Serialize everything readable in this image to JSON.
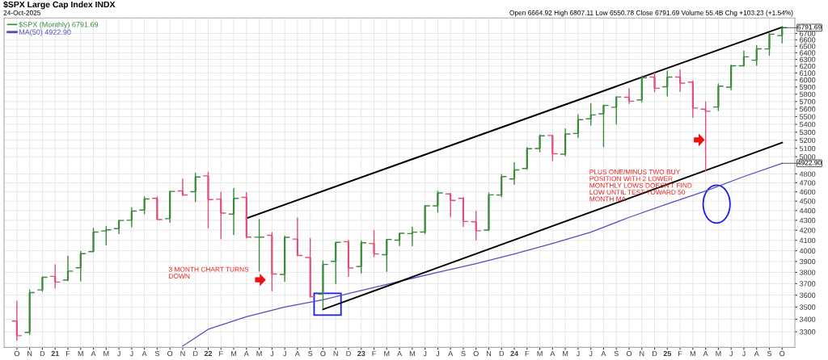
{
  "chart_data": {
    "type": "candlestick",
    "title": "$SPX Large Cap Index INDX",
    "subtitle": "24-Oct-2025",
    "x": [
      "2020-10",
      "2020-11",
      "2020-12",
      "2021-01",
      "2021-02",
      "2021-03",
      "2021-04",
      "2021-05",
      "2021-06",
      "2021-07",
      "2021-08",
      "2021-09",
      "2021-10",
      "2021-11",
      "2021-12",
      "2022-01",
      "2022-02",
      "2022-03",
      "2022-04",
      "2022-05",
      "2022-06",
      "2022-07",
      "2022-08",
      "2022-09",
      "2022-10",
      "2022-11",
      "2022-12",
      "2023-01",
      "2023-02",
      "2023-03",
      "2023-04",
      "2023-05",
      "2023-06",
      "2023-07",
      "2023-08",
      "2023-09",
      "2023-10",
      "2023-11",
      "2023-12",
      "2024-01",
      "2024-02",
      "2024-03",
      "2024-04",
      "2024-05",
      "2024-06",
      "2024-07",
      "2024-08",
      "2024-09",
      "2024-10",
      "2024-11",
      "2024-12",
      "2025-01",
      "2025-02",
      "2025-03",
      "2025-04",
      "2025-05",
      "2025-06",
      "2025-07",
      "2025-08",
      "2025-09",
      "2025-10"
    ],
    "xticks": [
      {
        "value": "2020-10",
        "label": "O"
      },
      {
        "value": "2020-11",
        "label": "N"
      },
      {
        "value": "2020-12",
        "label": "D"
      },
      {
        "value": "2021-01",
        "label": "21"
      },
      {
        "value": "2021-02",
        "label": "F"
      },
      {
        "value": "2021-03",
        "label": "M"
      },
      {
        "value": "2021-04",
        "label": "A"
      },
      {
        "value": "2021-05",
        "label": "M"
      },
      {
        "value": "2021-06",
        "label": "J"
      },
      {
        "value": "2021-07",
        "label": "J"
      },
      {
        "value": "2021-08",
        "label": "A"
      },
      {
        "value": "2021-09",
        "label": "S"
      },
      {
        "value": "2021-10",
        "label": "O"
      },
      {
        "value": "2021-11",
        "label": "N"
      },
      {
        "value": "2021-12",
        "label": "D"
      },
      {
        "value": "2022-01",
        "label": "22"
      },
      {
        "value": "2022-02",
        "label": "F"
      },
      {
        "value": "2022-03",
        "label": "M"
      },
      {
        "value": "2022-04",
        "label": "A"
      },
      {
        "value": "2022-05",
        "label": "M"
      },
      {
        "value": "2022-06",
        "label": "J"
      },
      {
        "value": "2022-07",
        "label": "J"
      },
      {
        "value": "2022-08",
        "label": "A"
      },
      {
        "value": "2022-09",
        "label": "S"
      },
      {
        "value": "2022-10",
        "label": "O"
      },
      {
        "value": "2022-11",
        "label": "N"
      },
      {
        "value": "2022-12",
        "label": "D"
      },
      {
        "value": "2023-01",
        "label": "23"
      },
      {
        "value": "2023-02",
        "label": "F"
      },
      {
        "value": "2023-03",
        "label": "M"
      },
      {
        "value": "2023-04",
        "label": "A"
      },
      {
        "value": "2023-05",
        "label": "M"
      },
      {
        "value": "2023-06",
        "label": "J"
      },
      {
        "value": "2023-07",
        "label": "J"
      },
      {
        "value": "2023-08",
        "label": "A"
      },
      {
        "value": "2023-09",
        "label": "S"
      },
      {
        "value": "2023-10",
        "label": "O"
      },
      {
        "value": "2023-11",
        "label": "N"
      },
      {
        "value": "2023-12",
        "label": "D"
      },
      {
        "value": "2024-01",
        "label": "24"
      },
      {
        "value": "2024-02",
        "label": "F"
      },
      {
        "value": "2024-03",
        "label": "M"
      },
      {
        "value": "2024-04",
        "label": "A"
      },
      {
        "value": "2024-05",
        "label": "M"
      },
      {
        "value": "2024-06",
        "label": "J"
      },
      {
        "value": "2024-07",
        "label": "J"
      },
      {
        "value": "2024-08",
        "label": "A"
      },
      {
        "value": "2024-09",
        "label": "S"
      },
      {
        "value": "2024-10",
        "label": "O"
      },
      {
        "value": "2024-11",
        "label": "N"
      },
      {
        "value": "2024-12",
        "label": "D"
      },
      {
        "value": "2025-01",
        "label": "25"
      },
      {
        "value": "2025-02",
        "label": "F"
      },
      {
        "value": "2025-03",
        "label": "M"
      },
      {
        "value": "2025-04",
        "label": "A"
      },
      {
        "value": "2025-05",
        "label": "M"
      },
      {
        "value": "2025-06",
        "label": "J"
      },
      {
        "value": "2025-07",
        "label": "J"
      },
      {
        "value": "2025-08",
        "label": "A"
      },
      {
        "value": "2025-09",
        "label": "S"
      },
      {
        "value": "2025-10",
        "label": "O"
      }
    ],
    "xlim": [
      "2020-09",
      "2025-11"
    ],
    "log": true,
    "ylim": [
      3180,
      6950
    ],
    "yticks": [
      3300,
      3400,
      3500,
      3600,
      3700,
      3800,
      3900,
      4000,
      4100,
      4200,
      4300,
      4400,
      4500,
      4600,
      4700,
      4800,
      5000,
      5100,
      5200,
      5300,
      5400,
      5500,
      5600,
      5700,
      5800,
      5900,
      6000,
      6100,
      6200,
      6300,
      6400,
      6500,
      6600,
      6700
    ],
    "grid": true,
    "legend": "top left",
    "series": [
      {
        "name": "$SPX (Monthly) 6791.69",
        "ohlc": [
          [
            3385,
            3549,
            3234,
            3270
          ],
          [
            3296,
            3645,
            3279,
            3622
          ],
          [
            3645,
            3760,
            3633,
            3756
          ],
          [
            3764,
            3870,
            3662,
            3714
          ],
          [
            3731,
            3950,
            3725,
            3811
          ],
          [
            3842,
            3994,
            3723,
            3973
          ],
          [
            3992,
            4219,
            3992,
            4181
          ],
          [
            4192,
            4238,
            4056,
            4204
          ],
          [
            4216,
            4302,
            4165,
            4298
          ],
          [
            4300,
            4429,
            4233,
            4395
          ],
          [
            4406,
            4546,
            4367,
            4523
          ],
          [
            4529,
            4546,
            4306,
            4308
          ],
          [
            4317,
            4608,
            4279,
            4605
          ],
          [
            4610,
            4744,
            4560,
            4567
          ],
          [
            4602,
            4808,
            4495,
            4766
          ],
          [
            4778,
            4818,
            4223,
            4516
          ],
          [
            4520,
            4595,
            4115,
            4374
          ],
          [
            4363,
            4637,
            4157,
            4530
          ],
          [
            4540,
            4593,
            4124,
            4132
          ],
          [
            4131,
            4307,
            3811,
            4132
          ],
          [
            4150,
            4178,
            3637,
            3785
          ],
          [
            3781,
            4141,
            3721,
            4130
          ],
          [
            4113,
            4325,
            3954,
            3955
          ],
          [
            3937,
            4119,
            3584,
            3586
          ],
          [
            3610,
            3905,
            3492,
            3872
          ],
          [
            3901,
            4080,
            3699,
            4080
          ],
          [
            4087,
            4101,
            3764,
            3840
          ],
          [
            3853,
            4095,
            3794,
            4077
          ],
          [
            4070,
            4195,
            3943,
            3970
          ],
          [
            3963,
            4110,
            3809,
            4109
          ],
          [
            4102,
            4170,
            4049,
            4169
          ],
          [
            4166,
            4231,
            4048,
            4180
          ],
          [
            4181,
            4455,
            4167,
            4450
          ],
          [
            4450,
            4607,
            4385,
            4589
          ],
          [
            4578,
            4584,
            4336,
            4508
          ],
          [
            4530,
            4541,
            4238,
            4288
          ],
          [
            4285,
            4394,
            4104,
            4194
          ],
          [
            4202,
            4588,
            4197,
            4568
          ],
          [
            4566,
            4794,
            4546,
            4770
          ],
          [
            4743,
            4932,
            4683,
            4846
          ],
          [
            4862,
            5111,
            4853,
            5096
          ],
          [
            5098,
            5265,
            5057,
            5254
          ],
          [
            5258,
            5264,
            4954,
            5036
          ],
          [
            5030,
            5342,
            5012,
            5278
          ],
          [
            5284,
            5524,
            5234,
            5460
          ],
          [
            5471,
            5670,
            5391,
            5522
          ],
          [
            5537,
            5652,
            5120,
            5648
          ],
          [
            5623,
            5768,
            5403,
            5762
          ],
          [
            5758,
            5879,
            5674,
            5705
          ],
          [
            5723,
            6054,
            5697,
            6032
          ],
          [
            6040,
            6100,
            5833,
            5882
          ],
          [
            5903,
            6128,
            5774,
            6041
          ],
          [
            6041,
            6147,
            5837,
            5955
          ],
          [
            5968,
            5986,
            5489,
            5612
          ],
          [
            5597,
            5696,
            4835,
            5569
          ],
          [
            5626,
            5944,
            5578,
            5912
          ],
          [
            5897,
            6215,
            5861,
            6205
          ],
          [
            6204,
            6427,
            6201,
            6339
          ],
          [
            6287,
            6508,
            6212,
            6460
          ],
          [
            6458,
            6699,
            6360,
            6688
          ],
          [
            6664.92,
            6807.11,
            6550.78,
            6791.69
          ]
        ],
        "colors": [
          "#e0507a",
          "#3a8a3a",
          "#3a8a3a",
          "#e0507a",
          "#3a8a3a",
          "#3a8a3a",
          "#3a8a3a",
          "#3a8a3a",
          "#3a8a3a",
          "#3a8a3a",
          "#3a8a3a",
          "#e0507a",
          "#3a8a3a",
          "#e0507a",
          "#3a8a3a",
          "#e0507a",
          "#e0507a",
          "#3a8a3a",
          "#e0507a",
          "#3a8a3a",
          "#e0507a",
          "#3a8a3a",
          "#e0507a",
          "#e0507a",
          "#3a8a3a",
          "#3a8a3a",
          "#e0507a",
          "#3a8a3a",
          "#e0507a",
          "#3a8a3a",
          "#3a8a3a",
          "#3a8a3a",
          "#3a8a3a",
          "#3a8a3a",
          "#e0507a",
          "#e0507a",
          "#e0507a",
          "#3a8a3a",
          "#3a8a3a",
          "#3a8a3a",
          "#3a8a3a",
          "#3a8a3a",
          "#e0507a",
          "#3a8a3a",
          "#3a8a3a",
          "#3a8a3a",
          "#3a8a3a",
          "#3a8a3a",
          "#e0507a",
          "#3a8a3a",
          "#e0507a",
          "#3a8a3a",
          "#e0507a",
          "#e0507a",
          "#e0507a",
          "#3a8a3a",
          "#3a8a3a",
          "#3a8a3a",
          "#3a8a3a",
          "#3a8a3a",
          "#3a8a3a"
        ]
      },
      {
        "type": "line",
        "name": "MA(50) 4922.90",
        "color": "#5050c0",
        "x": [
          "2021-11",
          "2022-01",
          "2022-04",
          "2022-07",
          "2022-10",
          "2023-01",
          "2023-04",
          "2023-07",
          "2023-10",
          "2024-01",
          "2024-04",
          "2024-07",
          "2024-10",
          "2025-01",
          "2025-04",
          "2025-07",
          "2025-10"
        ],
        "values": [
          3190,
          3320,
          3420,
          3500,
          3560,
          3640,
          3720,
          3800,
          3880,
          3970,
          4070,
          4180,
          4330,
          4470,
          4610,
          4770,
          4922.9
        ]
      },
      {
        "type": "line",
        "color": "#000000",
        "x": [
          "2022-04",
          "2025-10"
        ],
        "values": [
          4320,
          6800
        ]
      },
      {
        "type": "line",
        "color": "#000000",
        "x": [
          "2022-10",
          "2025-10"
        ],
        "values": [
          3480,
          5170
        ]
      }
    ],
    "annotations": [
      "Open 6664.92 High 6807.11 Low 6550.78 Close 6791.69 Volume 55.4B Chg +103.23 (+1.54%)",
      "3 MONTH CHART TURNS\nDOWN",
      "PLUS ONE/MINUS TWO BUY\nPOSITION WITH 2 LOWER\nMONTHLY LOWS DOESN'T FIND\nLOW UNTIL TEST TOWARD 50\nMONTH MA",
      {
        "text": "6791.69",
        "x": "2025-10",
        "y": 6791.69
      },
      {
        "text": "4922.90",
        "x": "2025-10",
        "y": 4922.9
      }
    ]
  }
}
